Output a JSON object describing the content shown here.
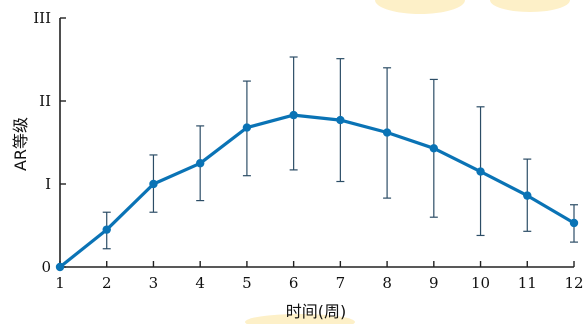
{
  "chart_data": {
    "type": "line",
    "xlabel": "时间(周)",
    "ylabel": "AR等级",
    "x": [
      1,
      2,
      3,
      4,
      5,
      6,
      7,
      8,
      9,
      10,
      11,
      12
    ],
    "y_tick_values": [
      0,
      1,
      2,
      3
    ],
    "y_tick_labels": [
      "0",
      "I",
      "II",
      "III"
    ],
    "x_tick_labels": [
      "1",
      "2",
      "3",
      "4",
      "5",
      "6",
      "7",
      "8",
      "9",
      "10",
      "11",
      "12"
    ],
    "xlim": [
      1,
      12
    ],
    "ylim": [
      0,
      3
    ],
    "grid": false,
    "legend": "none",
    "series": [
      {
        "values": [
          0,
          0.45,
          1.0,
          1.25,
          1.68,
          1.83,
          1.77,
          1.62,
          1.43,
          1.15,
          0.86,
          0.53
        ],
        "error_low": [
          0,
          0.22,
          0.66,
          0.8,
          1.1,
          1.17,
          1.03,
          0.83,
          0.6,
          0.38,
          0.43,
          0.3
        ],
        "error_high": [
          0,
          0.66,
          1.35,
          1.7,
          2.24,
          2.53,
          2.51,
          2.4,
          2.26,
          1.93,
          1.3,
          0.75
        ]
      }
    ],
    "colors": {
      "series": "#0a73b5",
      "error_bars": "#2c4d66",
      "axes": "#222222"
    }
  }
}
